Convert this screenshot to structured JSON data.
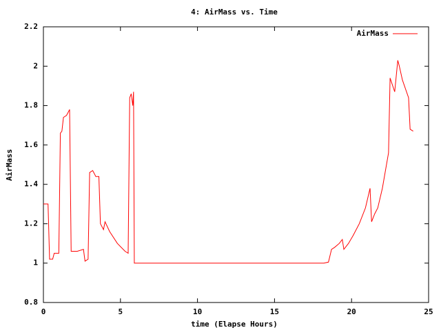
{
  "chart_data": {
    "type": "line",
    "title": "4: AirMass vs. Time",
    "x_label": "time (Elapse Hours)",
    "y_label": "AirMass",
    "x": [
      0,
      0.3,
      0.4,
      0.6,
      0.7,
      1.0,
      1.1,
      1.2,
      1.3,
      1.5,
      1.7,
      1.8,
      2.2,
      2.6,
      2.7,
      2.9,
      3.0,
      3.2,
      3.4,
      3.6,
      3.7,
      3.9,
      4.0,
      4.3,
      4.8,
      5.3,
      5.5,
      5.6,
      5.7,
      5.8,
      5.85,
      5.9,
      18.2,
      18.5,
      18.7,
      18.9,
      19.2,
      19.4,
      19.5,
      19.8,
      20.1,
      20.5,
      20.9,
      21.2,
      21.3,
      21.5,
      21.7,
      22.0,
      22.4,
      22.5,
      22.8,
      23.0,
      23.1,
      23.3,
      23.7,
      23.8,
      24.0
    ],
    "series": [
      {
        "name": "AirMass",
        "color": "#ff0000",
        "values": [
          1.3,
          1.3,
          1.02,
          1.02,
          1.05,
          1.05,
          1.66,
          1.67,
          1.74,
          1.75,
          1.78,
          1.06,
          1.06,
          1.07,
          1.01,
          1.02,
          1.46,
          1.47,
          1.44,
          1.44,
          1.2,
          1.17,
          1.21,
          1.16,
          1.1,
          1.06,
          1.05,
          1.84,
          1.86,
          1.8,
          1.87,
          1.0,
          1.0,
          1.005,
          1.07,
          1.08,
          1.1,
          1.12,
          1.07,
          1.1,
          1.14,
          1.2,
          1.28,
          1.38,
          1.21,
          1.25,
          1.28,
          1.38,
          1.56,
          1.94,
          1.87,
          2.03,
          2.0,
          1.93,
          1.84,
          1.68,
          1.67
        ]
      }
    ],
    "xlim": [
      0,
      25
    ],
    "xticks": [
      0,
      5,
      10,
      15,
      20,
      25
    ],
    "ylim": [
      0.8,
      2.2
    ],
    "yticks": [
      0.8,
      1,
      1.2,
      1.4,
      1.6,
      1.8,
      2,
      2.2
    ],
    "legend": "top-right",
    "grid": false
  }
}
